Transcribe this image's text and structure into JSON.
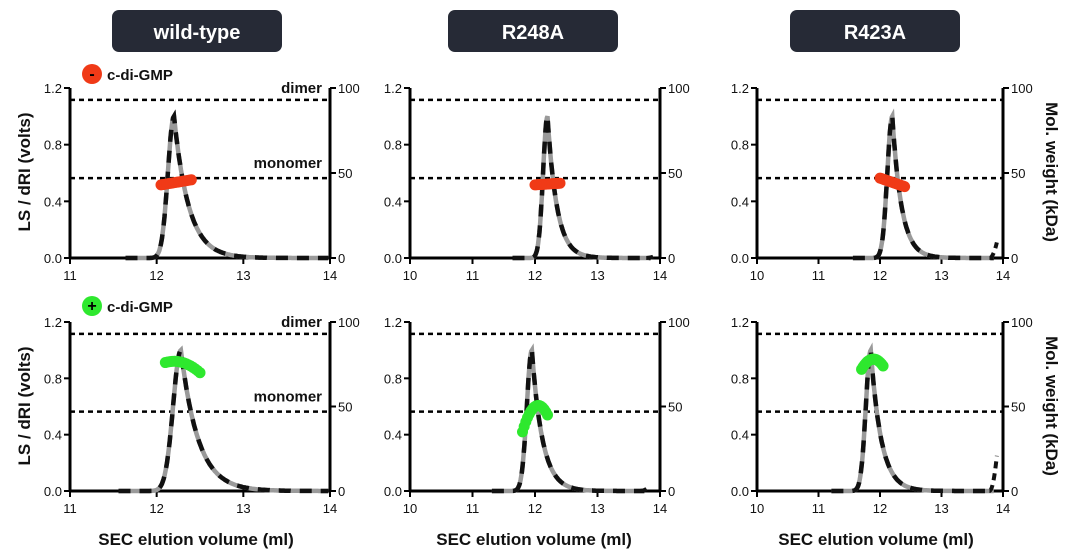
{
  "figure": {
    "column_titles": [
      "wild-type",
      "R248A",
      "R423A"
    ],
    "row_labels": [
      {
        "sign": "-",
        "label": "c-di-GMP",
        "color": "#f03a17"
      },
      {
        "sign": "+",
        "label": "c-di-GMP",
        "color": "#2ee82e"
      }
    ],
    "xlabel": "SEC elution volume (ml)",
    "ylabel_left": "LS / dRI (volts)",
    "ylabel_right": "Mol. weight (kDa)",
    "reference_lines": {
      "dimer_label": "dimer",
      "monomer_label": "monomer",
      "dimer_kda": 93,
      "monomer_kda": 47
    },
    "colors": {
      "header_bg": "#262a36",
      "trace_gray": "#9a9a9a",
      "trace_black": "#111111",
      "minus": "#f03a17",
      "plus": "#2ee82e"
    }
  },
  "chart_data": [
    {
      "type": "line",
      "id": "wt-minus",
      "column": "wild-type",
      "condition": "- c-di-GMP",
      "xlim": [
        11,
        14
      ],
      "xticks": [
        11,
        12,
        13,
        14
      ],
      "ylim": [
        0,
        1.2
      ],
      "yticks": [
        0.0,
        0.4,
        0.8,
        1.2
      ],
      "y2lim": [
        0,
        100
      ],
      "y2ticks": [
        0,
        50,
        100
      ],
      "peak": {
        "center": 12.2,
        "height": 1.0,
        "sigma_left": 0.07,
        "tau_right": 0.17
      },
      "mw_points": {
        "x_start": 12.05,
        "x_end": 12.4,
        "mw_start": 43,
        "mw_end": 46
      },
      "annotations": [
        "dimer",
        "monomer"
      ]
    },
    {
      "type": "line",
      "id": "r248a-minus",
      "column": "R248A",
      "condition": "- c-di-GMP",
      "xlim": [
        10,
        14
      ],
      "xticks": [
        10,
        11,
        12,
        13,
        14
      ],
      "ylim": [
        0,
        1.2
      ],
      "yticks": [
        0.0,
        0.4,
        0.8,
        1.2
      ],
      "y2lim": [
        0,
        100
      ],
      "y2ticks": [
        0,
        50,
        100
      ],
      "peak": {
        "center": 12.2,
        "height": 1.0,
        "sigma_left": 0.07,
        "tau_right": 0.15
      },
      "mw_points": {
        "x_start": 12.0,
        "x_end": 12.4,
        "mw_start": 43,
        "mw_end": 44
      },
      "tail": {
        "x": 13.9,
        "height": 0.01
      },
      "annotations": []
    },
    {
      "type": "line",
      "id": "r423a-minus",
      "column": "R423A",
      "condition": "- c-di-GMP",
      "xlim": [
        10,
        14
      ],
      "xticks": [
        10,
        11,
        12,
        13,
        14
      ],
      "ylim": [
        0,
        1.2
      ],
      "yticks": [
        0.0,
        0.4,
        0.8,
        1.2
      ],
      "y2lim": [
        0,
        100
      ],
      "y2ticks": [
        0,
        50,
        100
      ],
      "peak": {
        "center": 12.2,
        "height": 1.0,
        "sigma_left": 0.08,
        "tau_right": 0.15
      },
      "mw_points": {
        "x_start": 12.0,
        "x_end": 12.4,
        "mw_start": 47,
        "mw_end": 42
      },
      "tail": {
        "x": 13.9,
        "height": 0.11
      },
      "annotations": []
    },
    {
      "type": "line",
      "id": "wt-plus",
      "column": "wild-type",
      "condition": "+ c-di-GMP",
      "xlim": [
        11,
        14
      ],
      "xticks": [
        11,
        12,
        13,
        14
      ],
      "ylim": [
        0,
        1.2
      ],
      "yticks": [
        0.0,
        0.4,
        0.8,
        1.2
      ],
      "y2lim": [
        0,
        100
      ],
      "y2ticks": [
        0,
        50,
        100
      ],
      "peak": {
        "center": 12.28,
        "height": 1.0,
        "sigma_left": 0.09,
        "tau_right": 0.2
      },
      "mw_points": {
        "x_start": 12.1,
        "x_end": 12.5,
        "mw_start": 76,
        "mw_end": 70,
        "arch": 3
      },
      "annotations": [
        "dimer",
        "monomer"
      ]
    },
    {
      "type": "line",
      "id": "r248a-plus",
      "column": "R248A",
      "condition": "+ c-di-GMP",
      "xlim": [
        10,
        14
      ],
      "xticks": [
        10,
        11,
        12,
        13,
        14
      ],
      "ylim": [
        0,
        1.2
      ],
      "yticks": [
        0.0,
        0.4,
        0.8,
        1.2
      ],
      "y2lim": [
        0,
        100
      ],
      "y2ticks": [
        0,
        50,
        100
      ],
      "peak": {
        "center": 11.95,
        "height": 1.0,
        "sigma_left": 0.08,
        "tau_right": 0.17
      },
      "mw_points": {
        "x_start": 11.8,
        "x_end": 12.2,
        "mw_start": 35,
        "mw_end": 45,
        "arch": 10
      },
      "tail": {
        "x": 13.8,
        "height": 0.02
      },
      "annotations": []
    },
    {
      "type": "line",
      "id": "r423a-plus",
      "column": "R423A",
      "condition": "+ c-di-GMP",
      "xlim": [
        10,
        14
      ],
      "xticks": [
        10,
        11,
        12,
        13,
        14
      ],
      "ylim": [
        0,
        1.2
      ],
      "yticks": [
        0.0,
        0.4,
        0.8,
        1.2
      ],
      "y2lim": [
        0,
        100
      ],
      "y2ticks": [
        0,
        50,
        100
      ],
      "peak": {
        "center": 11.85,
        "height": 1.0,
        "sigma_left": 0.08,
        "tau_right": 0.17
      },
      "mw_points": {
        "x_start": 11.7,
        "x_end": 12.05,
        "mw_start": 72,
        "mw_end": 74,
        "arch": 5
      },
      "tail": {
        "x": 13.9,
        "height": 0.25
      },
      "annotations": []
    }
  ]
}
